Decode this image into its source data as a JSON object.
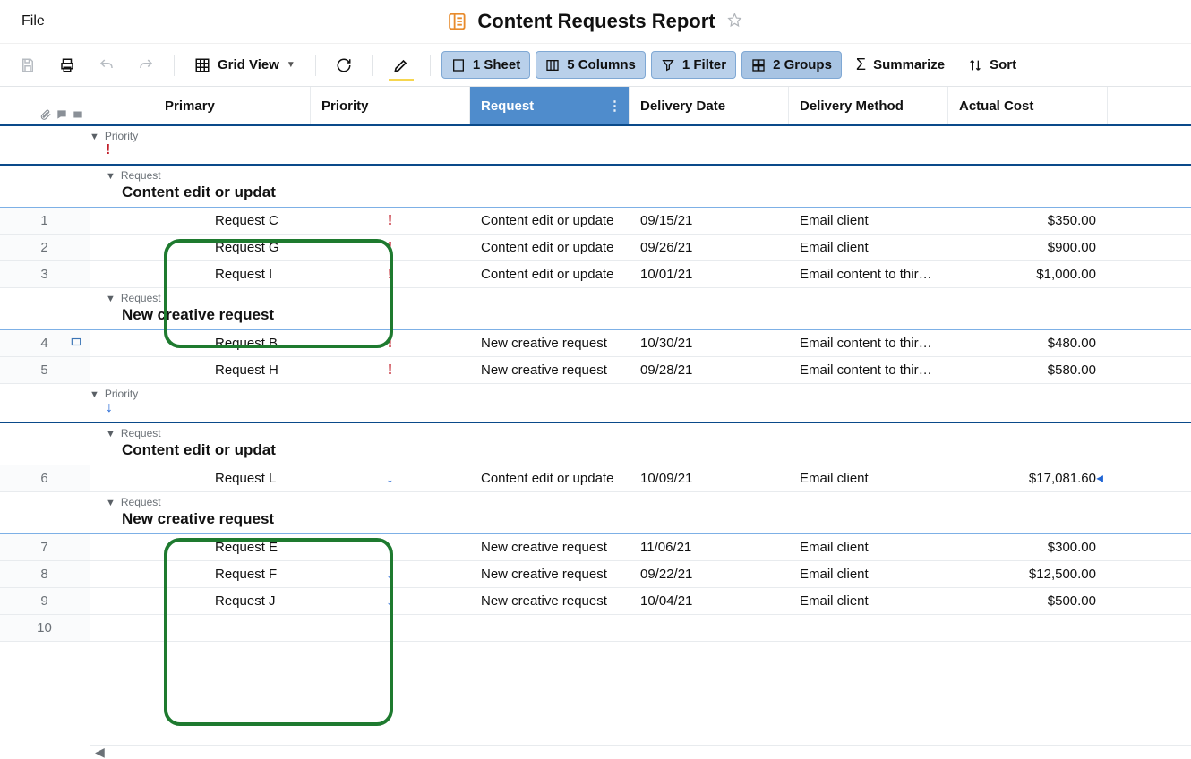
{
  "menu": {
    "file": "File"
  },
  "header": {
    "title": "Content Requests Report"
  },
  "toolbar": {
    "grid_view": "Grid View",
    "sheets": "1 Sheet",
    "columns": "5 Columns",
    "filters": "1 Filter",
    "groups": "2 Groups",
    "summarize": "Summarize",
    "sort": "Sort"
  },
  "columns": {
    "primary": "Primary",
    "priority": "Priority",
    "request": "Request",
    "delivery_date": "Delivery Date",
    "delivery_method": "Delivery Method",
    "actual_cost": "Actual Cost"
  },
  "labels": {
    "priority": "Priority",
    "request": "Request"
  },
  "groups": [
    {
      "priority_class": "high",
      "priority_glyph": "!",
      "subgroups": [
        {
          "title": "Content edit or updat",
          "rows": [
            {
              "n": "1",
              "primary": "Request C",
              "p": "high",
              "request": "Content edit or update",
              "date": "09/15/21",
              "method": "Email client",
              "cost": "$350.00"
            },
            {
              "n": "2",
              "primary": "Request G",
              "p": "high",
              "request": "Content edit or update",
              "date": "09/26/21",
              "method": "Email client",
              "cost": "$900.00"
            },
            {
              "n": "3",
              "primary": "Request I",
              "p": "high",
              "request": "Content edit or update",
              "date": "10/01/21",
              "method": "Email content to third p",
              "cost": "$1,000.00"
            }
          ]
        },
        {
          "title": "New creative request",
          "rows": [
            {
              "n": "4",
              "primary": "Request B",
              "p": "high",
              "request": "New creative request",
              "date": "10/30/21",
              "method": "Email content to third p",
              "cost": "$480.00",
              "has_attach": true
            },
            {
              "n": "5",
              "primary": "Request H",
              "p": "high",
              "request": "New creative request",
              "date": "09/28/21",
              "method": "Email content to third p",
              "cost": "$580.00"
            }
          ]
        }
      ]
    },
    {
      "priority_class": "low",
      "priority_glyph": "↓",
      "subgroups": [
        {
          "title": "Content edit or updat",
          "rows": [
            {
              "n": "6",
              "primary": "Request L",
              "p": "low",
              "request": "Content edit or update",
              "date": "10/09/21",
              "method": "Email client",
              "cost": "$17,081.60",
              "cost_mark": true
            }
          ]
        },
        {
          "title": "New creative request",
          "rows": [
            {
              "n": "7",
              "primary": "Request E",
              "p": "low",
              "request": "New creative request",
              "date": "11/06/21",
              "method": "Email client",
              "cost": "$300.00"
            },
            {
              "n": "8",
              "primary": "Request F",
              "p": "low",
              "request": "New creative request",
              "date": "09/22/21",
              "method": "Email client",
              "cost": "$12,500.00"
            },
            {
              "n": "9",
              "primary": "Request J",
              "p": "low",
              "request": "New creative request",
              "date": "10/04/21",
              "method": "Email client",
              "cost": "$500.00"
            }
          ]
        }
      ]
    }
  ],
  "trailing_rows": [
    {
      "n": "10"
    }
  ],
  "colors": {
    "pill_bg": "#b9d0ea",
    "pill_border": "#7fa8d4",
    "request_header_bg": "#4f8ccc",
    "group1_border": "#0a4a8a",
    "group2_border": "#7db0e6",
    "high_priority": "#c11f2a",
    "low_priority": "#2266d4",
    "highlight_border": "#1e7a2f"
  }
}
